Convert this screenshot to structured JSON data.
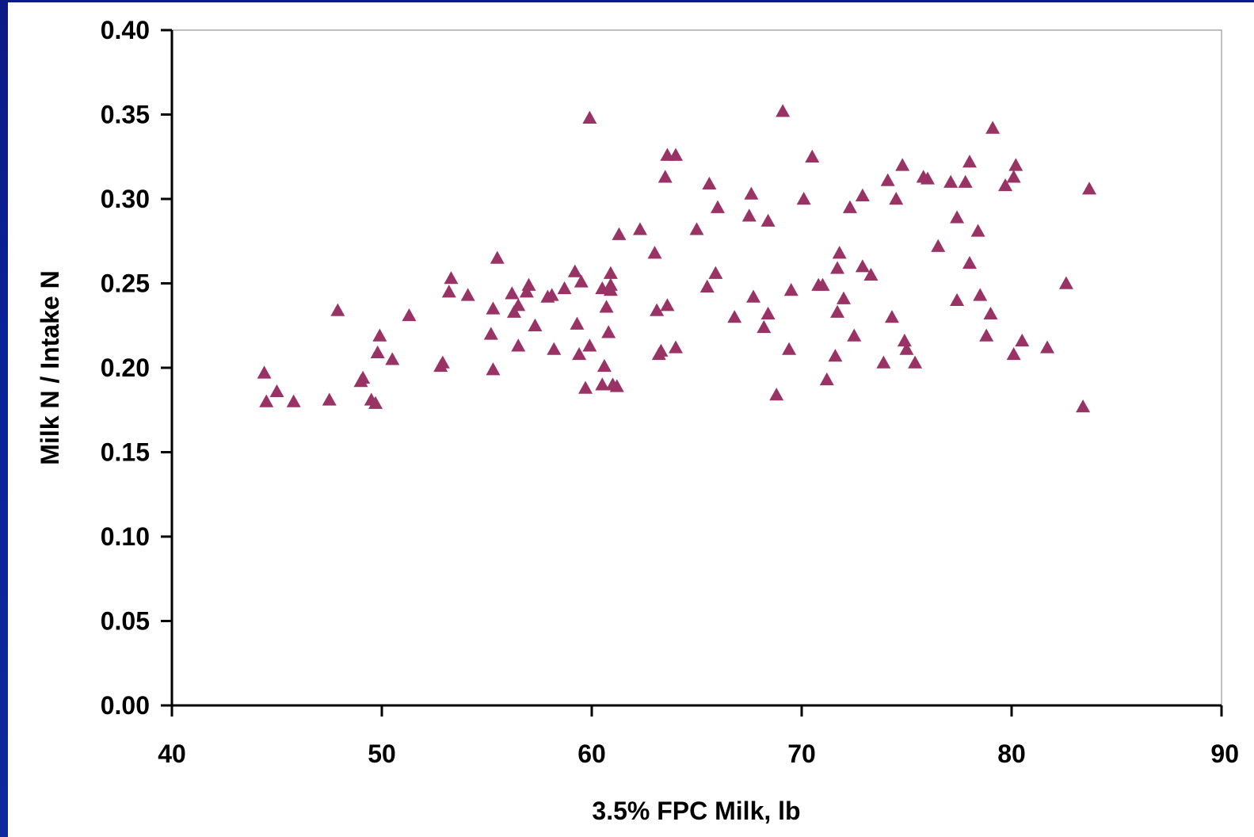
{
  "chart_data": {
    "type": "scatter",
    "title": "",
    "xlabel": "3.5% FPC Milk, lb",
    "ylabel": "Milk N / Intake N",
    "xlim": [
      40,
      90
    ],
    "ylim": [
      0.0,
      0.4
    ],
    "x_ticks": [
      "40",
      "50",
      "60",
      "70",
      "80",
      "90"
    ],
    "y_ticks": [
      "0.00",
      "0.05",
      "0.10",
      "0.15",
      "0.20",
      "0.25",
      "0.30",
      "0.35",
      "0.40"
    ],
    "grid": false,
    "legend": "none",
    "marker": "triangle",
    "marker_color": "#993366",
    "points": [
      [
        44.4,
        0.197
      ],
      [
        44.5,
        0.18
      ],
      [
        45.0,
        0.186
      ],
      [
        45.8,
        0.18
      ],
      [
        47.5,
        0.181
      ],
      [
        47.9,
        0.234
      ],
      [
        49.0,
        0.192
      ],
      [
        49.1,
        0.194
      ],
      [
        49.5,
        0.181
      ],
      [
        49.7,
        0.179
      ],
      [
        49.8,
        0.209
      ],
      [
        49.9,
        0.219
      ],
      [
        50.5,
        0.205
      ],
      [
        51.3,
        0.231
      ],
      [
        52.8,
        0.201
      ],
      [
        52.9,
        0.203
      ],
      [
        53.2,
        0.245
      ],
      [
        53.3,
        0.253
      ],
      [
        54.1,
        0.243
      ],
      [
        55.2,
        0.22
      ],
      [
        55.3,
        0.235
      ],
      [
        55.3,
        0.199
      ],
      [
        55.5,
        0.265
      ],
      [
        56.2,
        0.244
      ],
      [
        56.3,
        0.233
      ],
      [
        56.5,
        0.237
      ],
      [
        56.5,
        0.213
      ],
      [
        56.9,
        0.245
      ],
      [
        57.0,
        0.249
      ],
      [
        57.3,
        0.225
      ],
      [
        57.9,
        0.242
      ],
      [
        58.1,
        0.243
      ],
      [
        58.2,
        0.211
      ],
      [
        58.7,
        0.247
      ],
      [
        59.2,
        0.257
      ],
      [
        59.3,
        0.226
      ],
      [
        59.4,
        0.208
      ],
      [
        59.5,
        0.251
      ],
      [
        59.7,
        0.188
      ],
      [
        59.9,
        0.213
      ],
      [
        59.9,
        0.348
      ],
      [
        60.5,
        0.247
      ],
      [
        60.5,
        0.19
      ],
      [
        60.6,
        0.201
      ],
      [
        60.7,
        0.236
      ],
      [
        60.8,
        0.221
      ],
      [
        60.9,
        0.246
      ],
      [
        60.9,
        0.256
      ],
      [
        60.9,
        0.249
      ],
      [
        61.0,
        0.19
      ],
      [
        61.2,
        0.189
      ],
      [
        61.3,
        0.279
      ],
      [
        62.3,
        0.282
      ],
      [
        63.0,
        0.268
      ],
      [
        63.1,
        0.234
      ],
      [
        63.2,
        0.208
      ],
      [
        63.3,
        0.21
      ],
      [
        63.5,
        0.313
      ],
      [
        63.6,
        0.237
      ],
      [
        63.6,
        0.326
      ],
      [
        64.0,
        0.326
      ],
      [
        64.0,
        0.212
      ],
      [
        65.0,
        0.282
      ],
      [
        65.5,
        0.248
      ],
      [
        65.6,
        0.309
      ],
      [
        65.9,
        0.256
      ],
      [
        66.0,
        0.295
      ],
      [
        66.8,
        0.23
      ],
      [
        67.5,
        0.29
      ],
      [
        67.6,
        0.303
      ],
      [
        67.7,
        0.242
      ],
      [
        68.2,
        0.224
      ],
      [
        68.4,
        0.287
      ],
      [
        68.4,
        0.232
      ],
      [
        68.8,
        0.184
      ],
      [
        69.1,
        0.352
      ],
      [
        69.4,
        0.211
      ],
      [
        69.5,
        0.246
      ],
      [
        70.1,
        0.3
      ],
      [
        70.5,
        0.325
      ],
      [
        70.8,
        0.249
      ],
      [
        71.0,
        0.249
      ],
      [
        71.2,
        0.193
      ],
      [
        71.6,
        0.207
      ],
      [
        71.7,
        0.233
      ],
      [
        71.7,
        0.259
      ],
      [
        71.8,
        0.268
      ],
      [
        72.0,
        0.241
      ],
      [
        72.3,
        0.295
      ],
      [
        72.5,
        0.219
      ],
      [
        72.9,
        0.302
      ],
      [
        72.9,
        0.26
      ],
      [
        73.3,
        0.255
      ],
      [
        73.9,
        0.203
      ],
      [
        74.1,
        0.311
      ],
      [
        74.3,
        0.23
      ],
      [
        74.5,
        0.3
      ],
      [
        74.8,
        0.32
      ],
      [
        74.9,
        0.216
      ],
      [
        75.0,
        0.211
      ],
      [
        75.4,
        0.203
      ],
      [
        75.8,
        0.313
      ],
      [
        76.0,
        0.312
      ],
      [
        76.5,
        0.272
      ],
      [
        77.1,
        0.31
      ],
      [
        77.4,
        0.289
      ],
      [
        77.4,
        0.24
      ],
      [
        77.8,
        0.31
      ],
      [
        78.0,
        0.322
      ],
      [
        78.0,
        0.262
      ],
      [
        78.4,
        0.281
      ],
      [
        78.5,
        0.243
      ],
      [
        78.8,
        0.219
      ],
      [
        79.0,
        0.232
      ],
      [
        79.1,
        0.342
      ],
      [
        79.7,
        0.308
      ],
      [
        80.1,
        0.313
      ],
      [
        80.1,
        0.208
      ],
      [
        80.2,
        0.32
      ],
      [
        80.5,
        0.216
      ],
      [
        81.7,
        0.212
      ],
      [
        82.6,
        0.25
      ],
      [
        83.4,
        0.177
      ],
      [
        83.7,
        0.306
      ]
    ]
  }
}
